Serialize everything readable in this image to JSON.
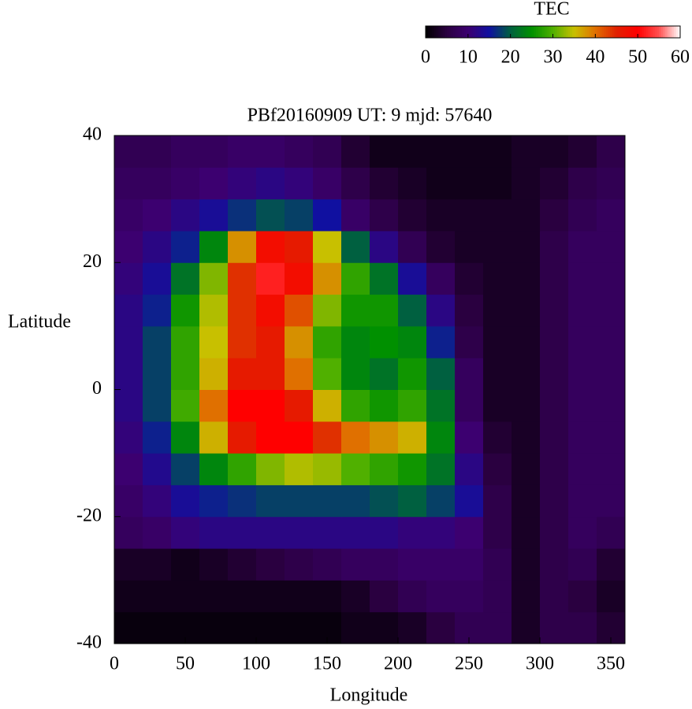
{
  "chart_data": {
    "type": "heatmap",
    "title": "PBf20160909  UT: 9  mjd: 57640",
    "xlabel": "Longitude",
    "ylabel": "Latitude",
    "colorbar_label": "TEC",
    "xlim": [
      0,
      360
    ],
    "xticks": [
      0,
      50,
      100,
      150,
      200,
      250,
      300,
      350
    ],
    "ylim": [
      -40,
      40
    ],
    "yticks": [
      -40,
      -20,
      0,
      20,
      40
    ],
    "cblim": [
      0,
      60
    ],
    "cbticks": [
      0,
      10,
      20,
      30,
      40,
      50,
      60
    ],
    "colormap": [
      "#000000",
      "#2a0040",
      "#3c0070",
      "#1010a0",
      "#006040",
      "#009000",
      "#50b000",
      "#c8c000",
      "#e07000",
      "#e02000",
      "#ff0000",
      "#ff5050",
      "#ffffff"
    ],
    "x": [
      10,
      30,
      50,
      70,
      90,
      110,
      130,
      150,
      170,
      190,
      210,
      230,
      250,
      270,
      290,
      310,
      330,
      350
    ],
    "y": [
      -37.5,
      -32.5,
      -27.5,
      -22.5,
      -17.5,
      -12.5,
      -7.5,
      -2.5,
      2.5,
      7.5,
      12.5,
      17.5,
      22.5,
      27.5,
      32.5,
      37.5
    ],
    "z": [
      [
        1,
        1,
        1,
        1,
        1,
        1,
        1,
        1,
        2,
        2,
        3,
        5,
        7,
        7,
        3,
        6,
        6,
        4
      ],
      [
        2,
        2,
        2,
        2,
        2,
        2,
        2,
        2,
        3,
        5,
        7,
        8,
        8,
        7,
        3,
        6,
        5,
        3
      ],
      [
        3,
        3,
        2,
        3,
        4,
        5,
        6,
        7,
        8,
        8,
        9,
        9,
        9,
        7,
        3,
        6,
        7,
        4
      ],
      [
        8,
        9,
        11,
        12,
        12,
        12,
        12,
        12,
        12,
        12,
        11,
        11,
        10,
        6,
        3,
        6,
        8,
        7
      ],
      [
        9,
        11,
        14,
        16,
        17,
        18,
        18,
        18,
        18,
        19,
        20,
        18,
        14,
        6,
        3,
        6,
        8,
        8
      ],
      [
        10,
        13,
        18,
        24,
        28,
        32,
        34,
        33,
        30,
        28,
        26,
        22,
        12,
        5,
        3,
        6,
        8,
        8
      ],
      [
        11,
        16,
        24,
        36,
        46,
        50,
        50,
        44,
        40,
        38,
        36,
        24,
        10,
        4,
        3,
        6,
        8,
        8
      ],
      [
        12,
        18,
        29,
        40,
        50,
        50,
        46,
        36,
        28,
        26,
        28,
        22,
        8,
        3,
        3,
        6,
        8,
        8
      ],
      [
        12,
        18,
        28,
        36,
        46,
        46,
        40,
        30,
        24,
        22,
        26,
        20,
        8,
        3,
        3,
        6,
        8,
        8
      ],
      [
        12,
        18,
        28,
        35,
        44,
        46,
        38,
        28,
        24,
        25,
        24,
        16,
        6,
        3,
        3,
        6,
        8,
        8
      ],
      [
        12,
        16,
        26,
        34,
        44,
        48,
        42,
        32,
        26,
        26,
        20,
        12,
        5,
        3,
        3,
        6,
        8,
        8
      ],
      [
        11,
        14,
        22,
        32,
        44,
        52,
        48,
        38,
        28,
        22,
        14,
        8,
        4,
        3,
        3,
        6,
        8,
        8
      ],
      [
        10,
        12,
        16,
        24,
        38,
        48,
        46,
        35,
        20,
        12,
        7,
        4,
        3,
        3,
        3,
        6,
        8,
        8
      ],
      [
        9,
        10,
        12,
        14,
        17,
        19,
        18,
        15,
        9,
        6,
        4,
        3,
        3,
        3,
        3,
        5,
        7,
        8
      ],
      [
        8,
        8,
        9,
        10,
        11,
        12,
        11,
        9,
        6,
        4,
        3,
        2,
        2,
        2,
        3,
        4,
        6,
        7
      ],
      [
        7,
        7,
        8,
        8,
        9,
        9,
        8,
        7,
        4,
        2,
        2,
        2,
        2,
        2,
        3,
        3,
        4,
        6
      ]
    ]
  }
}
